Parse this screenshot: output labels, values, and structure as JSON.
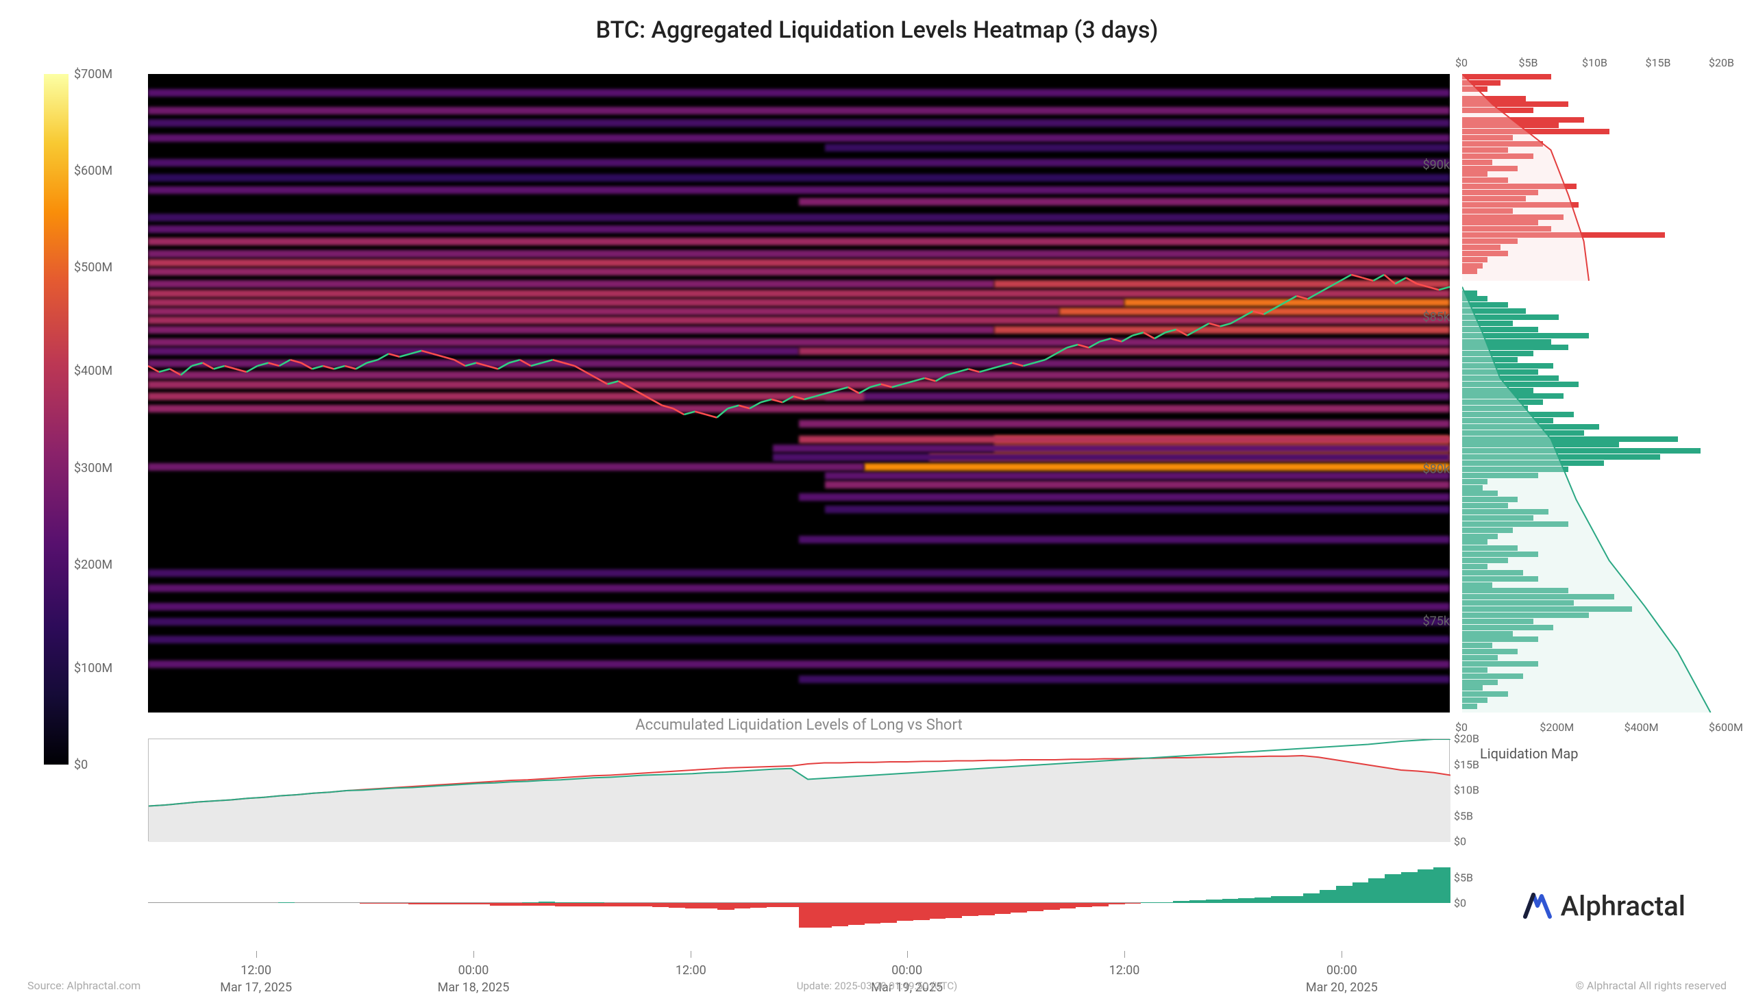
{
  "title": "BTC: Aggregated Liquidation Levels Heatmap (3 days)",
  "subtitle": "Accumulated Liquidation Levels of Long vs Short",
  "liqmap_title": "Liquidation Map",
  "footer_source": "Source: Alphractal.com",
  "footer_update": "Update: 2025-03-20 01:49:50 (UTC)",
  "footer_copy": "© Alphractal All rights reserved",
  "brand_name": "Alphractal",
  "colors": {
    "bg": "#ffffff",
    "heatmap_bg": "#000000",
    "text": "#666666",
    "green": "#2aa783",
    "green_fill": "#d5efe6",
    "red": "#e33e3e",
    "red_fill": "#f9dcdc",
    "grey_fill": "#e9e9e9",
    "brand_blue": "#3056d3",
    "brand_dark": "#1a1f3a"
  },
  "colorbar": {
    "ticks": [
      "$700M",
      "$600M",
      "$500M",
      "$400M",
      "$300M",
      "$200M",
      "$100M",
      "$0"
    ],
    "tick_pos_pct": [
      0,
      14,
      28,
      43,
      57,
      71,
      86,
      100
    ]
  },
  "heatmap": {
    "price_range": [
      72000,
      93000
    ],
    "price_ticks": [
      75000,
      80000,
      85000,
      90000
    ],
    "price_tick_labels": [
      "$75k",
      "$80k",
      "$85k",
      "$90k"
    ],
    "bands": [
      {
        "p": 92400,
        "i": 0.28,
        "s": 0.0,
        "w": 1.0
      },
      {
        "p": 91800,
        "i": 0.35,
        "s": 0.0,
        "w": 1.0
      },
      {
        "p": 91400,
        "i": 0.22,
        "s": 0.0,
        "w": 1.0
      },
      {
        "p": 90900,
        "i": 0.3,
        "s": 0.0,
        "w": 1.0
      },
      {
        "p": 90600,
        "i": 0.18,
        "s": 0.52,
        "w": 0.48
      },
      {
        "p": 90100,
        "i": 0.25,
        "s": 0.0,
        "w": 1.0
      },
      {
        "p": 89600,
        "i": 0.15,
        "s": 0.0,
        "w": 1.0
      },
      {
        "p": 89200,
        "i": 0.3,
        "s": 0.0,
        "w": 1.0
      },
      {
        "p": 88800,
        "i": 0.4,
        "s": 0.5,
        "w": 0.5
      },
      {
        "p": 88300,
        "i": 0.2,
        "s": 0.0,
        "w": 1.0
      },
      {
        "p": 87900,
        "i": 0.3,
        "s": 0.0,
        "w": 1.0
      },
      {
        "p": 87500,
        "i": 0.48,
        "s": 0.0,
        "w": 1.0
      },
      {
        "p": 87100,
        "i": 0.38,
        "s": 0.0,
        "w": 1.0
      },
      {
        "p": 86800,
        "i": 0.55,
        "s": 0.0,
        "w": 1.0
      },
      {
        "p": 86500,
        "i": 0.45,
        "s": 0.0,
        "w": 1.0
      },
      {
        "p": 86100,
        "i": 0.6,
        "s": 0.65,
        "w": 0.35
      },
      {
        "p": 86100,
        "i": 0.4,
        "s": 0.0,
        "w": 0.65
      },
      {
        "p": 85800,
        "i": 0.52,
        "s": 0.0,
        "w": 1.0
      },
      {
        "p": 85500,
        "i": 0.78,
        "s": 0.75,
        "w": 0.25
      },
      {
        "p": 85500,
        "i": 0.5,
        "s": 0.0,
        "w": 0.75
      },
      {
        "p": 85200,
        "i": 0.7,
        "s": 0.7,
        "w": 0.3
      },
      {
        "p": 85200,
        "i": 0.45,
        "s": 0.0,
        "w": 0.7
      },
      {
        "p": 84900,
        "i": 0.5,
        "s": 0.0,
        "w": 1.0
      },
      {
        "p": 84600,
        "i": 0.62,
        "s": 0.65,
        "w": 0.35
      },
      {
        "p": 84600,
        "i": 0.4,
        "s": 0.0,
        "w": 0.65
      },
      {
        "p": 84200,
        "i": 0.4,
        "s": 0.0,
        "w": 1.0
      },
      {
        "p": 83900,
        "i": 0.5,
        "s": 0.5,
        "w": 0.5
      },
      {
        "p": 83900,
        "i": 0.3,
        "s": 0.0,
        "w": 0.5
      },
      {
        "p": 83500,
        "i": 0.35,
        "s": 0.0,
        "w": 1.0
      },
      {
        "p": 83100,
        "i": 0.42,
        "s": 0.0,
        "w": 1.0
      },
      {
        "p": 82800,
        "i": 0.48,
        "s": 0.0,
        "w": 1.0
      },
      {
        "p": 82400,
        "i": 0.5,
        "s": 0.0,
        "w": 0.55
      },
      {
        "p": 82400,
        "i": 0.3,
        "s": 0.52,
        "w": 0.48
      },
      {
        "p": 82000,
        "i": 0.45,
        "s": 0.0,
        "w": 1.0
      },
      {
        "p": 81500,
        "i": 0.4,
        "s": 0.5,
        "w": 0.5
      },
      {
        "p": 81000,
        "i": 0.55,
        "s": 0.5,
        "w": 0.5
      },
      {
        "p": 81000,
        "i": 0.7,
        "s": 0.65,
        "w": 0.35
      },
      {
        "p": 80700,
        "i": 0.3,
        "s": 0.48,
        "w": 0.52
      },
      {
        "p": 80700,
        "i": 0.78,
        "s": 0.65,
        "w": 0.35
      },
      {
        "p": 80400,
        "i": 0.25,
        "s": 0.48,
        "w": 0.52
      },
      {
        "p": 80400,
        "i": 0.72,
        "s": 0.6,
        "w": 0.4
      },
      {
        "p": 80100,
        "i": 0.35,
        "s": 0.0,
        "w": 0.55
      },
      {
        "p": 80100,
        "i": 0.85,
        "s": 0.55,
        "w": 0.45
      },
      {
        "p": 79800,
        "i": 0.3,
        "s": 0.52,
        "w": 0.48
      },
      {
        "p": 79500,
        "i": 0.42,
        "s": 0.52,
        "w": 0.48
      },
      {
        "p": 79100,
        "i": 0.28,
        "s": 0.5,
        "w": 0.5
      },
      {
        "p": 78700,
        "i": 0.2,
        "s": 0.52,
        "w": 0.48
      },
      {
        "p": 77700,
        "i": 0.25,
        "s": 0.5,
        "w": 0.5
      },
      {
        "p": 76600,
        "i": 0.22,
        "s": 0.0,
        "w": 1.0
      },
      {
        "p": 76100,
        "i": 0.3,
        "s": 0.0,
        "w": 1.0
      },
      {
        "p": 75500,
        "i": 0.28,
        "s": 0.0,
        "w": 1.0
      },
      {
        "p": 75000,
        "i": 0.2,
        "s": 0.0,
        "w": 1.0
      },
      {
        "p": 74400,
        "i": 0.2,
        "s": 0.0,
        "w": 1.0
      },
      {
        "p": 73600,
        "i": 0.3,
        "s": 0.0,
        "w": 1.0
      },
      {
        "p": 73100,
        "i": 0.2,
        "s": 0.5,
        "w": 0.5
      }
    ],
    "price_line": [
      83400,
      83200,
      83300,
      83100,
      83400,
      83500,
      83300,
      83400,
      83300,
      83200,
      83400,
      83500,
      83400,
      83600,
      83500,
      83300,
      83400,
      83300,
      83400,
      83300,
      83500,
      83600,
      83800,
      83700,
      83800,
      83900,
      83800,
      83700,
      83600,
      83400,
      83500,
      83400,
      83300,
      83500,
      83600,
      83400,
      83500,
      83600,
      83500,
      83400,
      83200,
      83000,
      82800,
      82900,
      82700,
      82500,
      82300,
      82100,
      82000,
      81800,
      81900,
      81800,
      81700,
      82000,
      82100,
      82000,
      82200,
      82300,
      82200,
      82400,
      82300,
      82400,
      82500,
      82600,
      82700,
      82500,
      82700,
      82800,
      82700,
      82800,
      82900,
      83000,
      82900,
      83100,
      83200,
      83300,
      83200,
      83300,
      83400,
      83500,
      83400,
      83500,
      83600,
      83800,
      84000,
      84100,
      84000,
      84200,
      84300,
      84200,
      84400,
      84500,
      84300,
      84500,
      84600,
      84400,
      84600,
      84800,
      84700,
      84800,
      85000,
      85200,
      85100,
      85300,
      85500,
      85700,
      85600,
      85800,
      86000,
      86200,
      86400,
      86300,
      86200,
      86400,
      86100,
      86300,
      86100,
      86000,
      85900,
      86000
    ],
    "line_up_color": "#2fd183",
    "line_dn_color": "#ff4d4d"
  },
  "liqmap": {
    "top_ticks": [
      "$0",
      "$5B",
      "$10B",
      "$15B",
      "$20B"
    ],
    "bot_ticks": [
      "$0",
      "$200M",
      "$400M",
      "$600M"
    ],
    "shorts": [
      {
        "p": 92900,
        "v": 0.35
      },
      {
        "p": 92700,
        "v": 0.15
      },
      {
        "p": 92500,
        "v": 0.1
      },
      {
        "p": 92200,
        "v": 0.25
      },
      {
        "p": 92000,
        "v": 0.42
      },
      {
        "p": 91800,
        "v": 0.28
      },
      {
        "p": 91500,
        "v": 0.48
      },
      {
        "p": 91300,
        "v": 0.38
      },
      {
        "p": 91100,
        "v": 0.58
      },
      {
        "p": 90900,
        "v": 0.2
      },
      {
        "p": 90700,
        "v": 0.32
      },
      {
        "p": 90500,
        "v": 0.18
      },
      {
        "p": 90300,
        "v": 0.28
      },
      {
        "p": 90100,
        "v": 0.12
      },
      {
        "p": 89900,
        "v": 0.22
      },
      {
        "p": 89700,
        "v": 0.1
      },
      {
        "p": 89500,
        "v": 0.18
      },
      {
        "p": 89300,
        "v": 0.45
      },
      {
        "p": 89100,
        "v": 0.3
      },
      {
        "p": 88900,
        "v": 0.25
      },
      {
        "p": 88700,
        "v": 0.46
      },
      {
        "p": 88500,
        "v": 0.2
      },
      {
        "p": 88300,
        "v": 0.4
      },
      {
        "p": 88100,
        "v": 0.3
      },
      {
        "p": 87900,
        "v": 0.35
      },
      {
        "p": 87700,
        "v": 0.8
      },
      {
        "p": 87500,
        "v": 0.22
      },
      {
        "p": 87300,
        "v": 0.15
      },
      {
        "p": 87100,
        "v": 0.18
      },
      {
        "p": 86900,
        "v": 0.1
      },
      {
        "p": 86700,
        "v": 0.08
      },
      {
        "p": 86500,
        "v": 0.06
      }
    ],
    "longs": [
      {
        "p": 85800,
        "v": 0.06
      },
      {
        "p": 85600,
        "v": 0.1
      },
      {
        "p": 85400,
        "v": 0.18
      },
      {
        "p": 85200,
        "v": 0.25
      },
      {
        "p": 85000,
        "v": 0.38
      },
      {
        "p": 84800,
        "v": 0.2
      },
      {
        "p": 84600,
        "v": 0.3
      },
      {
        "p": 84400,
        "v": 0.5
      },
      {
        "p": 84200,
        "v": 0.35
      },
      {
        "p": 84000,
        "v": 0.42
      },
      {
        "p": 83800,
        "v": 0.28
      },
      {
        "p": 83600,
        "v": 0.22
      },
      {
        "p": 83400,
        "v": 0.36
      },
      {
        "p": 83200,
        "v": 0.3
      },
      {
        "p": 83000,
        "v": 0.38
      },
      {
        "p": 82800,
        "v": 0.46
      },
      {
        "p": 82600,
        "v": 0.28
      },
      {
        "p": 82400,
        "v": 0.4
      },
      {
        "p": 82200,
        "v": 0.32
      },
      {
        "p": 82000,
        "v": 0.26
      },
      {
        "p": 81800,
        "v": 0.44
      },
      {
        "p": 81600,
        "v": 0.36
      },
      {
        "p": 81400,
        "v": 0.54
      },
      {
        "p": 81200,
        "v": 0.48
      },
      {
        "p": 81000,
        "v": 0.85
      },
      {
        "p": 80800,
        "v": 0.62
      },
      {
        "p": 80600,
        "v": 0.94
      },
      {
        "p": 80400,
        "v": 0.78
      },
      {
        "p": 80200,
        "v": 0.56
      },
      {
        "p": 80000,
        "v": 0.42
      },
      {
        "p": 79800,
        "v": 0.3
      },
      {
        "p": 79600,
        "v": 0.1
      },
      {
        "p": 79400,
        "v": 0.08
      },
      {
        "p": 79200,
        "v": 0.14
      },
      {
        "p": 79000,
        "v": 0.22
      },
      {
        "p": 78800,
        "v": 0.18
      },
      {
        "p": 78600,
        "v": 0.34
      },
      {
        "p": 78400,
        "v": 0.28
      },
      {
        "p": 78200,
        "v": 0.42
      },
      {
        "p": 78000,
        "v": 0.2
      },
      {
        "p": 77800,
        "v": 0.14
      },
      {
        "p": 77600,
        "v": 0.1
      },
      {
        "p": 77400,
        "v": 0.22
      },
      {
        "p": 77200,
        "v": 0.3
      },
      {
        "p": 77000,
        "v": 0.18
      },
      {
        "p": 76800,
        "v": 0.1
      },
      {
        "p": 76600,
        "v": 0.24
      },
      {
        "p": 76400,
        "v": 0.3
      },
      {
        "p": 76200,
        "v": 0.12
      },
      {
        "p": 76000,
        "v": 0.42
      },
      {
        "p": 75800,
        "v": 0.6
      },
      {
        "p": 75600,
        "v": 0.44
      },
      {
        "p": 75400,
        "v": 0.67
      },
      {
        "p": 75200,
        "v": 0.5
      },
      {
        "p": 75000,
        "v": 0.28
      },
      {
        "p": 74800,
        "v": 0.36
      },
      {
        "p": 74600,
        "v": 0.2
      },
      {
        "p": 74400,
        "v": 0.3
      },
      {
        "p": 74200,
        "v": 0.12
      },
      {
        "p": 74000,
        "v": 0.22
      },
      {
        "p": 73800,
        "v": 0.14
      },
      {
        "p": 73600,
        "v": 0.3
      },
      {
        "p": 73400,
        "v": 0.1
      },
      {
        "p": 73200,
        "v": 0.24
      },
      {
        "p": 73000,
        "v": 0.14
      },
      {
        "p": 72800,
        "v": 0.08
      },
      {
        "p": 72600,
        "v": 0.18
      },
      {
        "p": 72400,
        "v": 0.1
      },
      {
        "p": 72200,
        "v": 0.06
      }
    ],
    "cum_short": [
      {
        "p": 93000,
        "v": 0.0
      },
      {
        "p": 92000,
        "v": 0.12
      },
      {
        "p": 90500,
        "v": 0.35
      },
      {
        "p": 89000,
        "v": 0.42
      },
      {
        "p": 87500,
        "v": 0.48
      },
      {
        "p": 86200,
        "v": 0.5
      }
    ],
    "cum_long": [
      {
        "p": 86000,
        "v": 0.0
      },
      {
        "p": 84500,
        "v": 0.08
      },
      {
        "p": 83000,
        "v": 0.15
      },
      {
        "p": 81000,
        "v": 0.35
      },
      {
        "p": 79000,
        "v": 0.45
      },
      {
        "p": 77000,
        "v": 0.58
      },
      {
        "p": 75500,
        "v": 0.72
      },
      {
        "p": 74000,
        "v": 0.85
      },
      {
        "p": 72000,
        "v": 0.98
      }
    ]
  },
  "area_chart": {
    "ylim": [
      0,
      20
    ],
    "y_ticks": [
      "$20B",
      "$15B",
      "$10B",
      "$5B",
      "$0"
    ],
    "long_series": [
      7,
      7.2,
      7.5,
      7.8,
      8,
      8.2,
      8.5,
      8.7,
      9,
      9.2,
      9.5,
      9.7,
      10,
      10.1,
      10.3,
      10.5,
      10.6,
      10.8,
      11,
      11.2,
      11.4,
      11.5,
      11.7,
      11.8,
      12,
      12.1,
      12.3,
      12.5,
      12.6,
      12.8,
      13,
      13.1,
      13.2,
      13.3,
      13.5,
      13.6,
      13.8,
      14,
      14.2,
      14.3,
      12.2,
      12.4,
      12.6,
      12.8,
      13,
      13.2,
      13.4,
      13.6,
      13.8,
      14,
      14.2,
      14.4,
      14.6,
      14.8,
      15,
      15.2,
      15.4,
      15.6,
      15.8,
      16,
      16.2,
      16.4,
      16.6,
      16.8,
      17,
      17.2,
      17.4,
      17.6,
      17.8,
      18,
      18.2,
      18.4,
      18.6,
      18.8,
      19,
      19.3,
      19.6,
      19.8,
      20,
      20
    ],
    "short_series": [
      7,
      7.2,
      7.5,
      7.8,
      8,
      8.2,
      8.5,
      8.7,
      9,
      9.2,
      9.5,
      9.7,
      10,
      10.2,
      10.4,
      10.6,
      10.8,
      11,
      11.2,
      11.4,
      11.6,
      11.8,
      12,
      12.1,
      12.3,
      12.5,
      12.7,
      12.9,
      13,
      13.2,
      13.4,
      13.6,
      13.8,
      14,
      14.2,
      14.4,
      14.5,
      14.6,
      14.7,
      14.8,
      15.2,
      15.4,
      15.4,
      15.5,
      15.5,
      15.6,
      15.6,
      15.7,
      15.7,
      15.8,
      15.8,
      15.9,
      15.9,
      16,
      16,
      16,
      16.1,
      16.1,
      16.2,
      16.2,
      16.3,
      16.3,
      16.4,
      16.4,
      16.5,
      16.5,
      16.6,
      16.6,
      16.7,
      16.7,
      16.8,
      16.5,
      16,
      15.5,
      15,
      14.5,
      14,
      13.8,
      13.5,
      13
    ]
  },
  "diff_chart": {
    "ylim": [
      -5,
      8
    ],
    "y_ticks": [
      {
        "v": 5,
        "l": "$5B"
      },
      {
        "v": 0,
        "l": "$0"
      }
    ],
    "values": [
      0,
      0,
      0,
      0,
      0,
      0,
      0,
      0,
      0,
      0,
      0,
      0,
      0,
      -0.1,
      -0.1,
      -0.1,
      -0.2,
      -0.2,
      -0.2,
      -0.2,
      -0.2,
      -0.3,
      -0.3,
      -0.3,
      -0.3,
      -0.4,
      -0.4,
      -0.4,
      -0.4,
      -0.4,
      -0.4,
      -0.5,
      -0.6,
      -0.7,
      -0.7,
      -0.8,
      -0.7,
      -0.6,
      -0.5,
      -0.5,
      -3.0,
      -3.0,
      -2.8,
      -2.7,
      -2.5,
      -2.4,
      -2.2,
      -2.1,
      -1.9,
      -1.8,
      -1.6,
      -1.5,
      -1.3,
      -1.2,
      -1.0,
      -0.8,
      -0.7,
      -0.5,
      -0.4,
      -0.2,
      -0.1,
      0.1,
      0.2,
      0.4,
      0.5,
      0.7,
      0.8,
      1.0,
      1.1,
      1.3,
      1.4,
      1.9,
      2.6,
      3.3,
      4.0,
      4.8,
      5.6,
      6.0,
      6.5,
      7.0
    ],
    "pos_changes": [
      0,
      0,
      0,
      0,
      0,
      0,
      0,
      0,
      0.1,
      0,
      0,
      0,
      0,
      0,
      0,
      0,
      0,
      0,
      0,
      0,
      0,
      0,
      0,
      0.2,
      0.3,
      0.2,
      0.2,
      0.2,
      0,
      0,
      0,
      0,
      0,
      0,
      0,
      0,
      0,
      0,
      0,
      0,
      0,
      0,
      0,
      0,
      0,
      0,
      0,
      0,
      0,
      0,
      0,
      0,
      0,
      0,
      0,
      0,
      0,
      0,
      0,
      0,
      0,
      0,
      0,
      0,
      0,
      0,
      0,
      0,
      0,
      0,
      0,
      0,
      0,
      0,
      0,
      0,
      0,
      0,
      0,
      0
    ]
  },
  "x_axis": {
    "ticks": [
      {
        "pos": 0.083,
        "top": "12:00",
        "bot": "Mar 17, 2025"
      },
      {
        "pos": 0.25,
        "top": "00:00",
        "bot": "Mar 18, 2025"
      },
      {
        "pos": 0.417,
        "top": "12:00",
        "bot": ""
      },
      {
        "pos": 0.583,
        "top": "00:00",
        "bot": "Mar 19, 2025"
      },
      {
        "pos": 0.75,
        "top": "12:00",
        "bot": ""
      },
      {
        "pos": 0.917,
        "top": "00:00",
        "bot": "Mar 20, 2025"
      }
    ]
  }
}
